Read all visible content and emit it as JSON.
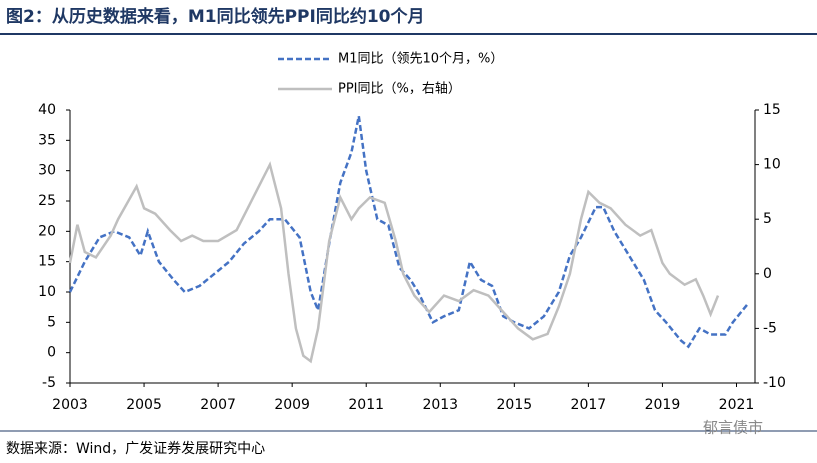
{
  "chart_data": {
    "type": "line",
    "title": "图2：从历史数据来看，M1同比领先PPI同比约10个月",
    "source": "数据来源：Wind，广发证券发展研究中心",
    "watermark": "郁言债市",
    "xlim": [
      2003,
      2021.5
    ],
    "xticks": [
      2003,
      2005,
      2007,
      2009,
      2011,
      2013,
      2015,
      2017,
      2019,
      2021
    ],
    "ylim": [
      -5,
      40
    ],
    "yticks": [
      -5,
      0,
      5,
      10,
      15,
      20,
      25,
      30,
      35,
      40
    ],
    "y2lim": [
      -10,
      15
    ],
    "y2ticks": [
      -10,
      -5,
      0,
      5,
      10,
      15
    ],
    "grid": false,
    "series": [
      {
        "name": "M1同比（领先10个月，%）",
        "color": "#4472c4",
        "dash": true,
        "x": [
          2003.0,
          2003.4,
          2003.8,
          2004.2,
          2004.6,
          2004.9,
          2005.1,
          2005.4,
          2005.8,
          2006.1,
          2006.5,
          2006.9,
          2007.3,
          2007.7,
          2008.1,
          2008.4,
          2008.8,
          2009.2,
          2009.5,
          2009.7,
          2010.0,
          2010.3,
          2010.6,
          2010.8,
          2011.0,
          2011.3,
          2011.6,
          2011.9,
          2012.2,
          2012.4,
          2012.8,
          2013.1,
          2013.5,
          2013.8,
          2014.1,
          2014.4,
          2014.7,
          2015.0,
          2015.4,
          2015.8,
          2016.2,
          2016.5,
          2016.8,
          2017.2,
          2017.4,
          2017.7,
          2018.0,
          2018.2,
          2018.5,
          2018.8,
          2019.1,
          2019.5,
          2019.7,
          2020.0,
          2020.3,
          2020.7,
          2020.9,
          2021.3
        ],
        "values": [
          10,
          15,
          19,
          20,
          19,
          16,
          20,
          15,
          12,
          10,
          11,
          13,
          15,
          18,
          20,
          22,
          22,
          19,
          10,
          7,
          18,
          28,
          33,
          39,
          30,
          22,
          21,
          14,
          12,
          10,
          5,
          6,
          7,
          15,
          12,
          11,
          6,
          5,
          4,
          6,
          10,
          16,
          19,
          24,
          24,
          20,
          17,
          15,
          12,
          7,
          5,
          2,
          1,
          4,
          3,
          3,
          5,
          8
        ]
      },
      {
        "name": "PPI同比（%，右轴）",
        "color": "#bfbfbf",
        "dash": false,
        "axis": "y2",
        "x": [
          2003.0,
          2003.2,
          2003.4,
          2003.7,
          2004.1,
          2004.3,
          2004.8,
          2005.0,
          2005.3,
          2005.7,
          2006.0,
          2006.3,
          2006.6,
          2007.0,
          2007.5,
          2007.8,
          2008.1,
          2008.4,
          2008.7,
          2008.9,
          2009.1,
          2009.3,
          2009.5,
          2009.7,
          2010.0,
          2010.3,
          2010.6,
          2010.8,
          2011.1,
          2011.5,
          2011.8,
          2012.0,
          2012.3,
          2012.7,
          2013.1,
          2013.5,
          2013.9,
          2014.3,
          2014.7,
          2015.1,
          2015.5,
          2015.9,
          2016.2,
          2016.5,
          2016.8,
          2017.0,
          2017.3,
          2017.6,
          2018.0,
          2018.4,
          2018.7,
          2019.0,
          2019.2,
          2019.6,
          2019.9,
          2020.1,
          2020.3,
          2020.5
        ],
        "values": [
          1,
          4.5,
          2,
          1.5,
          3.5,
          5,
          8,
          6,
          5.5,
          4,
          3,
          3.5,
          3,
          3,
          4,
          6,
          8,
          10,
          6,
          0,
          -5,
          -7.5,
          -8,
          -5,
          3,
          7,
          5,
          6,
          7,
          6.5,
          3,
          0,
          -2,
          -3.5,
          -2,
          -2.5,
          -1.5,
          -2,
          -3.5,
          -5,
          -6,
          -5.5,
          -3,
          0,
          5,
          7.5,
          6.5,
          6,
          4.5,
          3.5,
          4,
          1,
          0,
          -1,
          -0.5,
          -2,
          -3.7,
          -2
        ]
      }
    ]
  }
}
